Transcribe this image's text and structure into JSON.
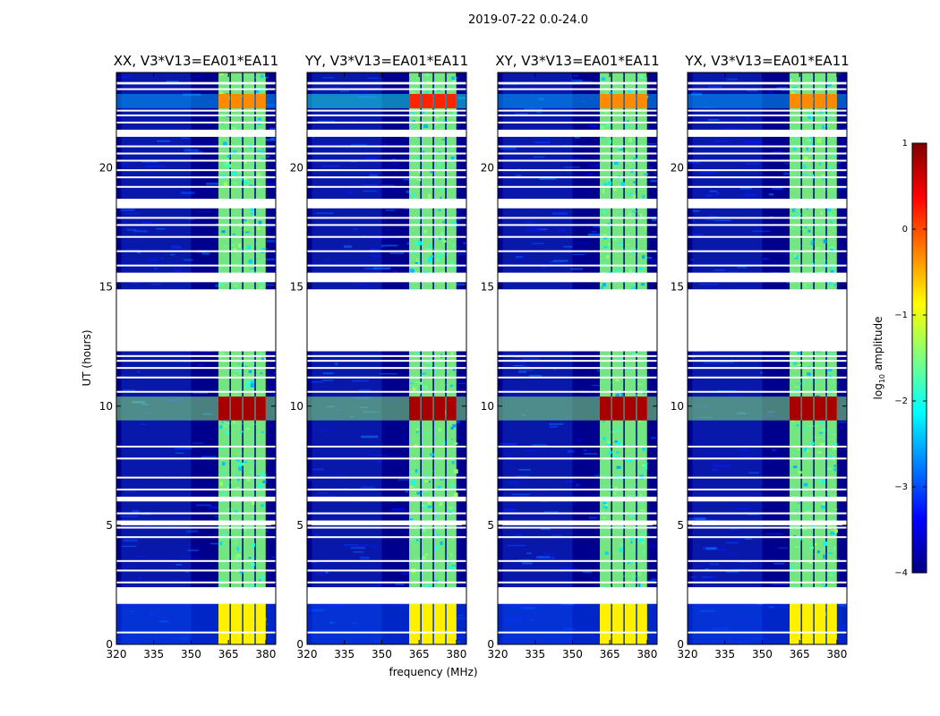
{
  "figure": {
    "title": "2019-07-22 0.0-24.0",
    "xlabel": "frequency (MHz)",
    "ylabel": "UT (hours)"
  },
  "colorbar": {
    "label_prefix": "log",
    "label_sub": "10",
    "label_suffix": " amplitude",
    "ticks": [
      1,
      0,
      -1,
      -2,
      -3,
      -4
    ],
    "tick_labels": [
      "1",
      "0",
      "−1",
      "−2",
      "−3",
      "−4"
    ],
    "range": [
      -4,
      1
    ],
    "stops": [
      "#00007f",
      "#0000ff",
      "#007fff",
      "#00ffff",
      "#7fff7f",
      "#ffff00",
      "#ff7f00",
      "#ff0000",
      "#7f0000"
    ]
  },
  "colors": {
    "background": "#00008f",
    "band": "#1f5fff",
    "rfi_block": "#7fff7f",
    "strong": "#ff3000",
    "peak": "#8f0000",
    "flag": "#ffffff"
  },
  "chart_data": {
    "type": "heatmap",
    "panels": [
      {
        "label": "XX, V3*V13=EA01*EA11",
        "pol": "XX"
      },
      {
        "label": "YY, V3*V13=EA01*EA11",
        "pol": "YY"
      },
      {
        "label": "XY, V3*V13=EA01*EA11",
        "pol": "XY"
      },
      {
        "label": "YX, V3*V13=EA01*EA11",
        "pol": "YX"
      }
    ],
    "xlim": [
      320,
      384
    ],
    "x_ticks": [
      320,
      335,
      350,
      365,
      380
    ],
    "x_tick_labels": [
      "320",
      "335",
      "350",
      "365",
      "380"
    ],
    "ylim": [
      0,
      24
    ],
    "y_ticks": [
      0,
      5,
      10,
      15,
      20
    ],
    "y_tick_labels": [
      "0",
      "5",
      "10",
      "15",
      "20"
    ],
    "flagged_ut_ranges": [
      [
        1.7,
        2.4
      ],
      [
        5.0,
        5.2
      ],
      [
        6.0,
        6.2
      ],
      [
        12.3,
        14.9
      ],
      [
        15.2,
        15.6
      ],
      [
        18.3,
        18.7
      ],
      [
        21.3,
        21.6
      ],
      [
        23.5,
        23.6
      ]
    ],
    "rfi_subbands_mhz": [
      [
        361,
        366
      ],
      [
        366,
        371
      ],
      [
        371,
        376
      ],
      [
        376,
        380.5
      ]
    ],
    "strong_events": [
      {
        "ut": [
          9.4,
          10.4
        ],
        "level": 0.8,
        "panels": [
          "XX",
          "YY",
          "XY",
          "YX"
        ]
      },
      {
        "ut": [
          22.5,
          23.1
        ],
        "level": 0.2,
        "panels": [
          "YY"
        ]
      },
      {
        "ut": [
          22.5,
          23.1
        ],
        "level": -0.3,
        "panels": [
          "XX",
          "XY",
          "YX"
        ]
      },
      {
        "ut": [
          0.0,
          1.7
        ],
        "level": -0.8,
        "panels": [
          "XX",
          "YY",
          "XY",
          "YX"
        ]
      }
    ]
  }
}
